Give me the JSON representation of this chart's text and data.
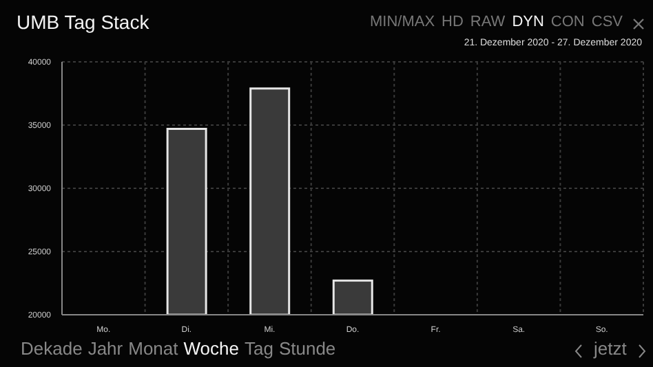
{
  "chart_data": {
    "type": "bar",
    "title": "UMB Tag Stack",
    "categories": [
      "Mo.",
      "Di.",
      "Mi.",
      "Do.",
      "Fr.",
      "Sa.",
      "So."
    ],
    "values": [
      null,
      34700,
      37900,
      22700,
      null,
      null,
      null
    ],
    "color": "#3a3a3a",
    "ylim": [
      20000,
      40000
    ],
    "yticks": [
      20000,
      25000,
      30000,
      35000,
      40000
    ],
    "grid": true,
    "annotations": [
      "21. Dezember 2020 - 27. Dezember 2020",
      "MIN/MAX",
      "HD",
      "RAW",
      "DYN",
      "CON",
      "CSV",
      "Dekade",
      "Jahr",
      "Monat",
      "Woche",
      "Tag",
      "Stunde",
      "jetzt"
    ]
  }
}
